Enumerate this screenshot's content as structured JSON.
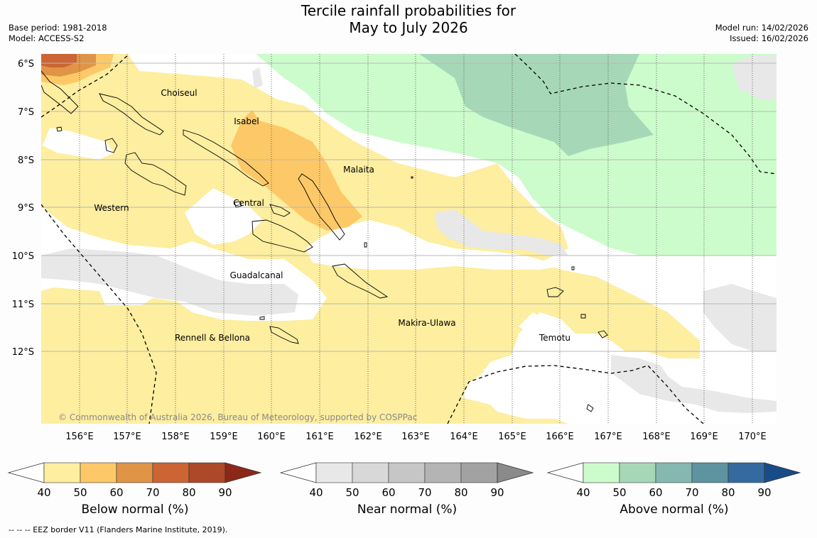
{
  "title_line1": "Tercile rainfall probabilities for",
  "title_line2": "May to July 2026",
  "base_period": "Base period: 1981-2018",
  "model": "Model: ACCESS-S2",
  "model_run": "Model run: 14/02/2026",
  "issued": "Issued: 16/02/2026",
  "copyright": "© Commonwealth of Australia 2026, Bureau of Meteorology, supported by COSPPac",
  "footnote": "--  --  -- EEZ border V11 (Flanders Marine Institute, 2019).",
  "lat_labels": [
    "6°S",
    "7°S",
    "8°S",
    "9°S",
    "10°S",
    "11°S",
    "12°S"
  ],
  "lon_labels": [
    "156°E",
    "157°E",
    "158°E",
    "159°E",
    "160°E",
    "161°E",
    "162°E",
    "163°E",
    "164°E",
    "165°E",
    "166°E",
    "167°E",
    "168°E",
    "169°E",
    "170°E"
  ],
  "regions": [
    "Choiseul",
    "Isabel",
    "Malaita",
    "Western",
    "Central",
    "Guadalcanal",
    "Makira-Ulawa",
    "Rennell & Bellona",
    "Temotu"
  ],
  "colorbars": [
    {
      "title": "Below normal (%)",
      "ticks": [
        "40",
        "50",
        "60",
        "70",
        "80",
        "90"
      ],
      "colors": [
        "#fdeea0",
        "#fdc867",
        "#e09446",
        "#cc6434",
        "#ad4828",
        "#8c2818"
      ]
    },
    {
      "title": "Near normal (%)",
      "ticks": [
        "40",
        "50",
        "60",
        "70",
        "80",
        "90"
      ],
      "colors": [
        "#e8e8e8",
        "#d8d8d8",
        "#c6c6c6",
        "#b4b4b4",
        "#a2a2a2",
        "#8a8a8a"
      ]
    },
    {
      "title": "Above normal (%)",
      "ticks": [
        "40",
        "50",
        "60",
        "70",
        "80",
        "90"
      ],
      "colors": [
        "#ccfccc",
        "#a6d8b8",
        "#84b8b0",
        "#5e94a0",
        "#346aa0",
        "#184c88"
      ]
    }
  ]
}
